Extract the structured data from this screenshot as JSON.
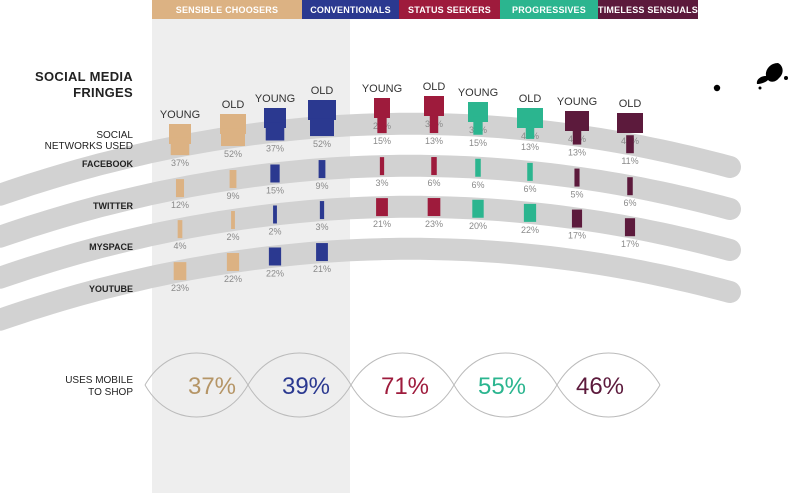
{
  "title": {
    "line1": "SOCIAL MEDIA",
    "line2": "FRINGES"
  },
  "row_header": {
    "line1": "SOCIAL",
    "line2": "NETWORKS USED"
  },
  "mobile_label": {
    "line1": "USES MOBILE",
    "line2": "TO SHOP"
  },
  "colors": {
    "background": "#ffffff",
    "shade": "#eeeeee",
    "band": "#d2d2d2",
    "text": "#222222",
    "value_text": "#8a8a8a"
  },
  "chart_data": {
    "type": "bar",
    "segments": [
      {
        "name": "SENSIBLE CHOOSERS",
        "color": "#dcb283",
        "pct_color": "#b59566",
        "mobile_pct": "37%"
      },
      {
        "name": "CONVENTIONALS",
        "color": "#2b3990",
        "pct_color": "#2b3990",
        "mobile_pct": "39%"
      },
      {
        "name": "STATUS SEEKERS",
        "color": "#9e1b3c",
        "pct_color": "#9e1b3c",
        "mobile_pct": "71%"
      },
      {
        "name": "PROGRESSIVES",
        "color": "#2bb58f",
        "pct_color": "#2bb58f",
        "mobile_pct": "55%"
      },
      {
        "name": "TIMELESS SENSUALS",
        "color": "#5c1a3c",
        "pct_color": "#5c1a3c",
        "mobile_pct": "46%"
      }
    ],
    "age_groups": [
      "YOUNG",
      "OLD"
    ],
    "rows": [
      "FACEBOOK",
      "TWITTER",
      "MYSPACE",
      "YOUTUBE"
    ],
    "header_values": [
      "37%",
      "52%",
      "37%",
      "52%",
      "29%",
      "36%",
      "31%",
      "43%",
      "41%",
      "43%"
    ],
    "values": {
      "FACEBOOK": [
        "37%",
        "52%",
        "37%",
        "52%",
        "15%",
        "13%",
        "15%",
        "13%",
        "13%",
        "11%"
      ],
      "TWITTER": [
        "12%",
        "9%",
        "15%",
        "9%",
        "3%",
        "6%",
        "6%",
        "6%",
        "5%",
        "6%"
      ],
      "MYSPACE": [
        "4%",
        "2%",
        "2%",
        "3%",
        "21%",
        "23%",
        "20%",
        "22%",
        "17%",
        "17%"
      ],
      "YOUTUBE": [
        "23%",
        "22%",
        "22%",
        "21%",
        "",
        "",
        "",
        "",
        "",
        ""
      ]
    },
    "value_units": "percent of segment"
  }
}
